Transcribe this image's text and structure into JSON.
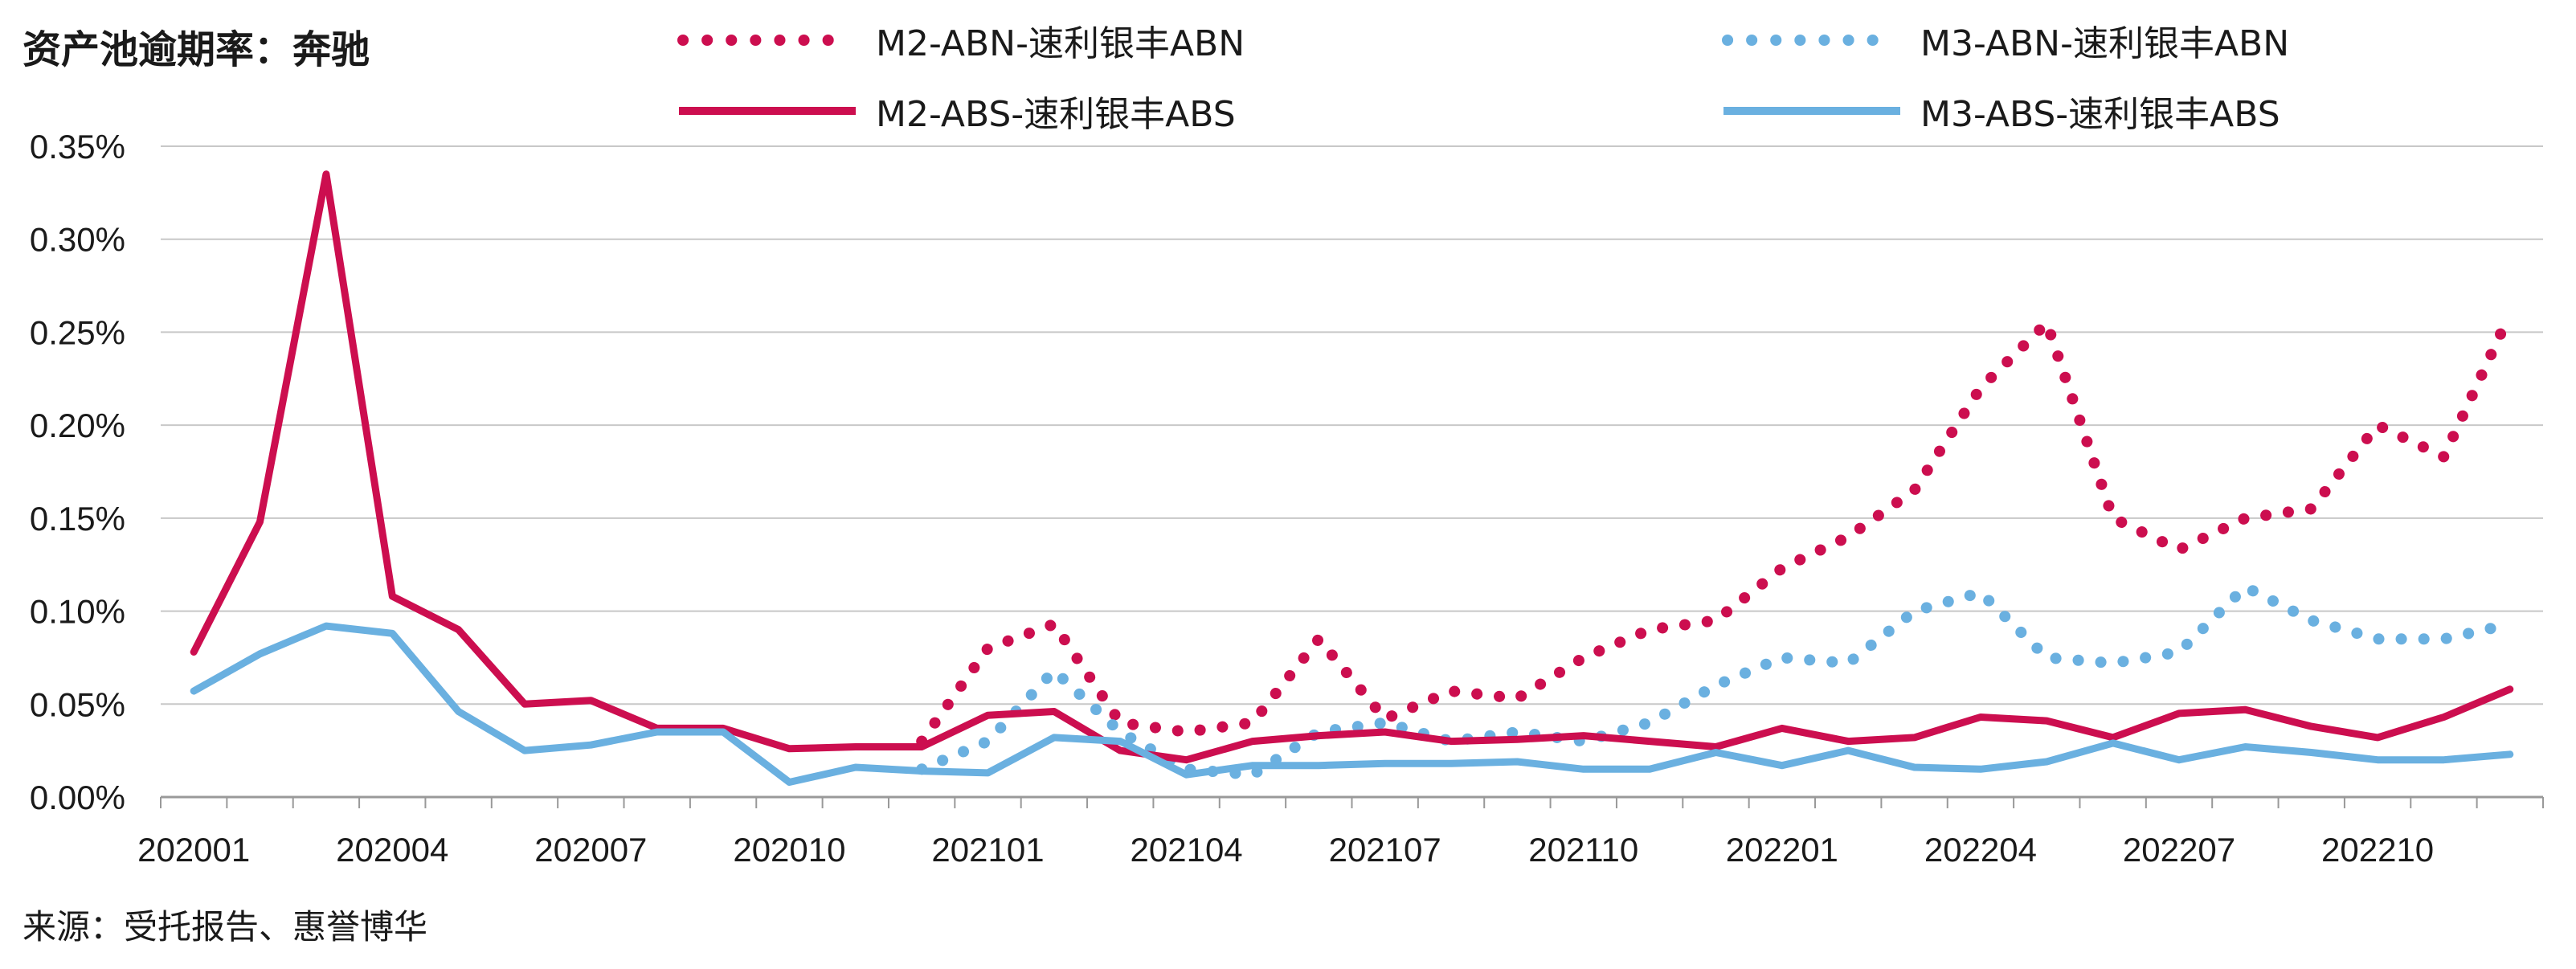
{
  "title": "资产池逾期率：奔驰",
  "source": "来源：受托报告、惠誉博华",
  "colors": {
    "m2": "#cc0e4f",
    "m3": "#6ab0e0",
    "grid": "#c8c8c8",
    "axis": "#999999"
  },
  "chart_data": {
    "type": "line",
    "title": "资产池逾期率：奔驰",
    "xlabel": "",
    "ylabel": "",
    "ylim": [
      0,
      0.0035
    ],
    "y_ticks": [
      "0.00%",
      "0.05%",
      "0.10%",
      "0.15%",
      "0.20%",
      "0.25%",
      "0.30%",
      "0.35%"
    ],
    "grid": true,
    "legend_position": "top",
    "x": [
      "202001",
      "202002",
      "202003",
      "202004",
      "202005",
      "202006",
      "202007",
      "202008",
      "202009",
      "202010",
      "202011",
      "202012",
      "202101",
      "202102",
      "202103",
      "202104",
      "202105",
      "202106",
      "202107",
      "202108",
      "202109",
      "202110",
      "202111",
      "202112",
      "202201",
      "202202",
      "202203",
      "202204",
      "202205",
      "202206",
      "202207",
      "202208",
      "202209",
      "202210",
      "202211",
      "202212"
    ],
    "x_tick_labels": [
      "202001",
      "202004",
      "202007",
      "202010",
      "202101",
      "202104",
      "202107",
      "202110",
      "202201",
      "202204",
      "202207",
      "202210"
    ],
    "series": [
      {
        "name": "M2-ABN-速利银丰ABN",
        "style": "dotted",
        "color": "#cc0e4f",
        "x": [
          "202012",
          "202101",
          "202102",
          "202103",
          "202104",
          "202105",
          "202106",
          "202107",
          "202108",
          "202109",
          "202110",
          "202111",
          "202112",
          "202201",
          "202202",
          "202203",
          "202204",
          "202205",
          "202206",
          "202207",
          "202208",
          "202209",
          "202210",
          "202211",
          "202212"
        ],
        "values": [
          0.0003,
          0.0008,
          0.00093,
          0.0004,
          0.00035,
          0.0004,
          0.00085,
          0.00042,
          0.00057,
          0.00053,
          0.00075,
          0.0009,
          0.00095,
          0.00123,
          0.0014,
          0.00165,
          0.0022,
          0.00255,
          0.0015,
          0.00133,
          0.0015,
          0.00155,
          0.002,
          0.00183,
          0.0026
        ]
      },
      {
        "name": "M3-ABN-速利银丰ABN",
        "style": "dotted",
        "color": "#6ab0e0",
        "x": [
          "202012",
          "202101",
          "202102",
          "202103",
          "202104",
          "202105",
          "202106",
          "202107",
          "202108",
          "202109",
          "202110",
          "202111",
          "202112",
          "202201",
          "202202",
          "202203",
          "202204",
          "202205",
          "202206",
          "202207",
          "202208",
          "202209",
          "202210",
          "202211",
          "202212"
        ],
        "values": [
          0.00015,
          0.0003,
          0.00068,
          0.00035,
          0.00015,
          0.00012,
          0.00035,
          0.0004,
          0.0003,
          0.00035,
          0.0003,
          0.0004,
          0.0006,
          0.00075,
          0.00072,
          0.001,
          0.0011,
          0.00075,
          0.00072,
          0.00078,
          0.00113,
          0.00095,
          0.00085,
          0.00085,
          0.00093
        ]
      },
      {
        "name": "M2-ABS-速利银丰ABS",
        "style": "solid",
        "color": "#cc0e4f",
        "x": [
          "202001",
          "202002",
          "202003",
          "202004",
          "202005",
          "202006",
          "202007",
          "202008",
          "202009",
          "202010",
          "202011",
          "202012",
          "202101",
          "202102",
          "202103",
          "202104",
          "202105",
          "202106",
          "202107",
          "202108",
          "202109",
          "202110",
          "202111",
          "202112",
          "202201",
          "202202",
          "202203",
          "202204",
          "202205",
          "202206",
          "202207",
          "202208",
          "202209",
          "202210",
          "202211",
          "202212"
        ],
        "values": [
          0.00078,
          0.00148,
          0.00335,
          0.00108,
          0.0009,
          0.0005,
          0.00052,
          0.00037,
          0.00037,
          0.00026,
          0.00027,
          0.00027,
          0.00044,
          0.00046,
          0.00025,
          0.0002,
          0.0003,
          0.00033,
          0.00035,
          0.0003,
          0.00031,
          0.00033,
          0.0003,
          0.00027,
          0.00037,
          0.0003,
          0.00032,
          0.00043,
          0.00041,
          0.00032,
          0.00045,
          0.00047,
          0.00038,
          0.00032,
          0.00043,
          0.00058
        ]
      },
      {
        "name": "M3-ABS-速利银丰ABS",
        "style": "solid",
        "color": "#6ab0e0",
        "x": [
          "202001",
          "202002",
          "202003",
          "202004",
          "202005",
          "202006",
          "202007",
          "202008",
          "202009",
          "202010",
          "202011",
          "202012",
          "202101",
          "202102",
          "202103",
          "202104",
          "202105",
          "202106",
          "202107",
          "202108",
          "202109",
          "202110",
          "202111",
          "202112",
          "202201",
          "202202",
          "202203",
          "202204",
          "202205",
          "202206",
          "202207",
          "202208",
          "202209",
          "202210",
          "202211",
          "202212"
        ],
        "values": [
          0.00057,
          0.00077,
          0.00092,
          0.00088,
          0.00046,
          0.00025,
          0.00028,
          0.00035,
          0.00035,
          8e-05,
          0.00016,
          0.00014,
          0.00013,
          0.00032,
          0.0003,
          0.00012,
          0.00017,
          0.00017,
          0.00018,
          0.00018,
          0.00019,
          0.00015,
          0.00015,
          0.00024,
          0.00017,
          0.00025,
          0.00016,
          0.00015,
          0.00019,
          0.00029,
          0.0002,
          0.00027,
          0.00024,
          0.0002,
          0.0002,
          0.00023
        ]
      }
    ]
  }
}
